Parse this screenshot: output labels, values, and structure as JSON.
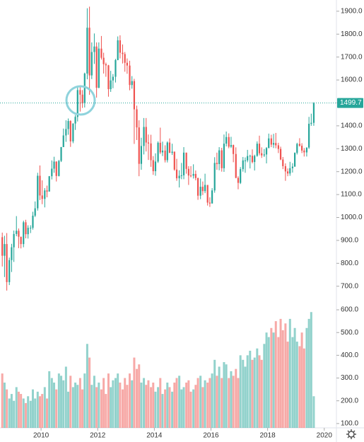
{
  "chart_data": {
    "type": "candlestick",
    "x": [
      2008.63,
      2008.71,
      2008.79,
      2008.88,
      2008.96,
      2009.04,
      2009.13,
      2009.21,
      2009.29,
      2009.38,
      2009.46,
      2009.54,
      2009.63,
      2009.71,
      2009.79,
      2009.88,
      2009.96,
      2010.04,
      2010.13,
      2010.21,
      2010.29,
      2010.38,
      2010.46,
      2010.54,
      2010.63,
      2010.71,
      2010.79,
      2010.88,
      2010.96,
      2011.04,
      2011.13,
      2011.21,
      2011.29,
      2011.38,
      2011.46,
      2011.54,
      2011.63,
      2011.71,
      2011.79,
      2011.88,
      2011.96,
      2012.04,
      2012.13,
      2012.21,
      2012.29,
      2012.38,
      2012.46,
      2012.54,
      2012.63,
      2012.71,
      2012.79,
      2012.88,
      2012.96,
      2013.04,
      2013.13,
      2013.21,
      2013.29,
      2013.38,
      2013.46,
      2013.54,
      2013.63,
      2013.71,
      2013.79,
      2013.88,
      2013.96,
      2014.04,
      2014.13,
      2014.21,
      2014.29,
      2014.38,
      2014.46,
      2014.54,
      2014.63,
      2014.71,
      2014.79,
      2014.88,
      2014.96,
      2015.04,
      2015.13,
      2015.21,
      2015.29,
      2015.38,
      2015.46,
      2015.54,
      2015.63,
      2015.71,
      2015.79,
      2015.88,
      2015.96,
      2016.04,
      2016.13,
      2016.21,
      2016.29,
      2016.38,
      2016.46,
      2016.54,
      2016.63,
      2016.71,
      2016.79,
      2016.88,
      2016.96,
      2017.04,
      2017.13,
      2017.21,
      2017.29,
      2017.38,
      2017.46,
      2017.54,
      2017.63,
      2017.71,
      2017.79,
      2017.88,
      2017.96,
      2018.04,
      2018.13,
      2018.21,
      2018.29,
      2018.38,
      2018.46,
      2018.54,
      2018.63,
      2018.71,
      2018.79,
      2018.88,
      2018.96,
      2019.04,
      2019.13,
      2019.21,
      2019.29,
      2019.38,
      2019.46,
      2019.54,
      2019.63
    ],
    "open": [
      914,
      833,
      884,
      718,
      814,
      870,
      928,
      942,
      916,
      884,
      979,
      927,
      955,
      955,
      1008,
      1040,
      1182,
      1096,
      1081,
      1118,
      1113,
      1180,
      1213,
      1244,
      1181,
      1247,
      1307,
      1358,
      1386,
      1421,
      1332,
      1410,
      1439,
      1556,
      1536,
      1500,
      1628,
      1828,
      1620,
      1722,
      1746,
      1566,
      1737,
      1697,
      1669,
      1664,
      1560,
      1598,
      1614,
      1687,
      1773,
      1719,
      1713,
      1675,
      1663,
      1578,
      1595,
      1472,
      1393,
      1234,
      1312,
      1395,
      1327,
      1323,
      1250,
      1202,
      1244,
      1326,
      1284,
      1292,
      1250,
      1327,
      1282,
      1287,
      1209,
      1171,
      1182,
      1184,
      1283,
      1212,
      1183,
      1182,
      1190,
      1172,
      1095,
      1134,
      1115,
      1142,
      1065,
      1061,
      1118,
      1238,
      1233,
      1293,
      1215,
      1322,
      1351,
      1309,
      1316,
      1277,
      1173,
      1151,
      1211,
      1249,
      1249,
      1268,
      1269,
      1242,
      1269,
      1322,
      1280,
      1271,
      1275,
      1303,
      1345,
      1318,
      1325,
      1315,
      1299,
      1253,
      1224,
      1201,
      1192,
      1215,
      1222,
      1282,
      1321,
      1313,
      1292,
      1284,
      1305,
      1409,
      1413
    ],
    "high": [
      934,
      920,
      932,
      825,
      885,
      943,
      1006,
      952,
      916,
      986,
      990,
      966,
      966,
      1025,
      1070,
      1195,
      1227,
      1162,
      1128,
      1139,
      1181,
      1249,
      1265,
      1245,
      1251,
      1308,
      1388,
      1424,
      1432,
      1424,
      1411,
      1447,
      1575,
      1577,
      1556,
      1632,
      1913,
      1920,
      1764,
      1803,
      1764,
      1764,
      1792,
      1719,
      1676,
      1666,
      1640,
      1626,
      1692,
      1790,
      1795,
      1755,
      1722,
      1694,
      1684,
      1617,
      1605,
      1488,
      1424,
      1348,
      1434,
      1434,
      1362,
      1361,
      1268,
      1280,
      1332,
      1392,
      1331,
      1315,
      1332,
      1345,
      1322,
      1288,
      1256,
      1206,
      1238,
      1307,
      1283,
      1224,
      1224,
      1232,
      1205,
      1174,
      1170,
      1157,
      1191,
      1142,
      1088,
      1128,
      1263,
      1283,
      1307,
      1304,
      1362,
      1375,
      1367,
      1352,
      1318,
      1306,
      1180,
      1220,
      1264,
      1262,
      1295,
      1274,
      1297,
      1274,
      1332,
      1357,
      1306,
      1299,
      1307,
      1366,
      1361,
      1365,
      1369,
      1326,
      1309,
      1264,
      1236,
      1214,
      1243,
      1237,
      1284,
      1326,
      1346,
      1324,
      1303,
      1306,
      1439,
      1453,
      1503
    ],
    "low": [
      786,
      740,
      681,
      705,
      762,
      806,
      918,
      866,
      865,
      870,
      909,
      908,
      932,
      947,
      1002,
      1030,
      1076,
      1058,
      1044,
      1088,
      1114,
      1166,
      1195,
      1157,
      1179,
      1242,
      1308,
      1330,
      1361,
      1308,
      1324,
      1382,
      1419,
      1462,
      1478,
      1480,
      1603,
      1535,
      1604,
      1670,
      1523,
      1564,
      1689,
      1628,
      1614,
      1527,
      1548,
      1564,
      1589,
      1686,
      1694,
      1672,
      1636,
      1627,
      1555,
      1562,
      1321,
      1338,
      1180,
      1208,
      1275,
      1288,
      1251,
      1221,
      1186,
      1182,
      1238,
      1277,
      1268,
      1240,
      1240,
      1281,
      1273,
      1204,
      1160,
      1131,
      1167,
      1167,
      1191,
      1142,
      1175,
      1170,
      1162,
      1077,
      1080,
      1098,
      1106,
      1052,
      1046,
      1061,
      1108,
      1208,
      1206,
      1200,
      1199,
      1310,
      1302,
      1303,
      1241,
      1171,
      1123,
      1146,
      1200,
      1195,
      1241,
      1214,
      1236,
      1205,
      1265,
      1271,
      1260,
      1264,
      1236,
      1302,
      1307,
      1303,
      1302,
      1281,
      1250,
      1211,
      1160,
      1180,
      1182,
      1196,
      1221,
      1275,
      1309,
      1281,
      1266,
      1266,
      1299,
      1400,
      1400
    ],
    "close": [
      833,
      884,
      718,
      814,
      870,
      928,
      942,
      916,
      884,
      979,
      927,
      955,
      955,
      1008,
      1040,
      1182,
      1096,
      1081,
      1118,
      1113,
      1180,
      1213,
      1244,
      1181,
      1247,
      1307,
      1358,
      1386,
      1421,
      1332,
      1410,
      1439,
      1556,
      1536,
      1500,
      1628,
      1828,
      1620,
      1722,
      1746,
      1566,
      1737,
      1697,
      1669,
      1664,
      1560,
      1598,
      1614,
      1687,
      1773,
      1719,
      1713,
      1675,
      1663,
      1578,
      1595,
      1472,
      1393,
      1234,
      1312,
      1395,
      1327,
      1323,
      1250,
      1202,
      1244,
      1326,
      1284,
      1292,
      1250,
      1327,
      1282,
      1287,
      1209,
      1171,
      1182,
      1184,
      1283,
      1212,
      1183,
      1182,
      1190,
      1172,
      1095,
      1134,
      1115,
      1142,
      1065,
      1061,
      1118,
      1238,
      1233,
      1293,
      1215,
      1322,
      1351,
      1309,
      1316,
      1277,
      1173,
      1151,
      1211,
      1249,
      1249,
      1268,
      1269,
      1242,
      1269,
      1322,
      1280,
      1271,
      1275,
      1303,
      1345,
      1318,
      1325,
      1315,
      1299,
      1253,
      1224,
      1201,
      1192,
      1215,
      1222,
      1282,
      1321,
      1313,
      1292,
      1284,
      1305,
      1409,
      1413,
      1499.7
    ],
    "volume": [
      320,
      280,
      250,
      210,
      230,
      200,
      260,
      240,
      230,
      210,
      190,
      220,
      200,
      250,
      210,
      240,
      220,
      230,
      260,
      210,
      330,
      300,
      280,
      250,
      320,
      310,
      290,
      350,
      240,
      310,
      260,
      280,
      270,
      300,
      250,
      320,
      450,
      390,
      270,
      310,
      260,
      280,
      250,
      300,
      230,
      320,
      260,
      290,
      300,
      320,
      280,
      250,
      300,
      270,
      320,
      290,
      390,
      340,
      360,
      280,
      300,
      270,
      290,
      260,
      280,
      240,
      260,
      300,
      230,
      250,
      280,
      260,
      240,
      280,
      300,
      310,
      250,
      260,
      280,
      290,
      240,
      250,
      270,
      300,
      310,
      260,
      290,
      280,
      300,
      320,
      380,
      310,
      350,
      300,
      370,
      360,
      300,
      330,
      310,
      340,
      300,
      400,
      380,
      350,
      400,
      420,
      380,
      390,
      430,
      400,
      380,
      450,
      500,
      480,
      520,
      500,
      550,
      480,
      560,
      510,
      540,
      460,
      560,
      480,
      520,
      460,
      440,
      500,
      430,
      520,
      560,
      590,
      220
    ],
    "xlim": [
      2008.55,
      2020.43
    ],
    "xticks": [
      2010,
      2012,
      2014,
      2016,
      2018,
      2020
    ],
    "ylim": [
      622,
      1949
    ],
    "yticks": [
      {
        "value": 700,
        "label": "700.0"
      },
      {
        "value": 800,
        "label": "800.0"
      },
      {
        "value": 900,
        "label": "900.0"
      },
      {
        "value": 1000,
        "label": "1000.0"
      },
      {
        "value": 1100,
        "label": "1100.0"
      },
      {
        "value": 1200,
        "label": "1200.0"
      },
      {
        "value": 1300,
        "label": "1300.0"
      },
      {
        "value": 1400,
        "label": "1400.0"
      },
      {
        "value": 1500,
        "label": "1500.0"
      },
      {
        "value": 1600,
        "label": "1600.0"
      },
      {
        "value": 1700,
        "label": "1700.0"
      },
      {
        "value": 1800,
        "label": "1800.0"
      },
      {
        "value": 1900,
        "label": "1900.0"
      }
    ],
    "y2lim": [
      81,
      625
    ],
    "y2ticks": [
      {
        "value": 100,
        "label": "100.0"
      },
      {
        "value": 200,
        "label": "200.0"
      },
      {
        "value": 300,
        "label": "300.0"
      },
      {
        "value": 400,
        "label": "400.0"
      },
      {
        "value": 500,
        "label": "500.0"
      },
      {
        "value": 600,
        "label": "600.0"
      }
    ],
    "up_color": "#26a69a",
    "down_color": "#ef5350",
    "grid": false
  }
}
